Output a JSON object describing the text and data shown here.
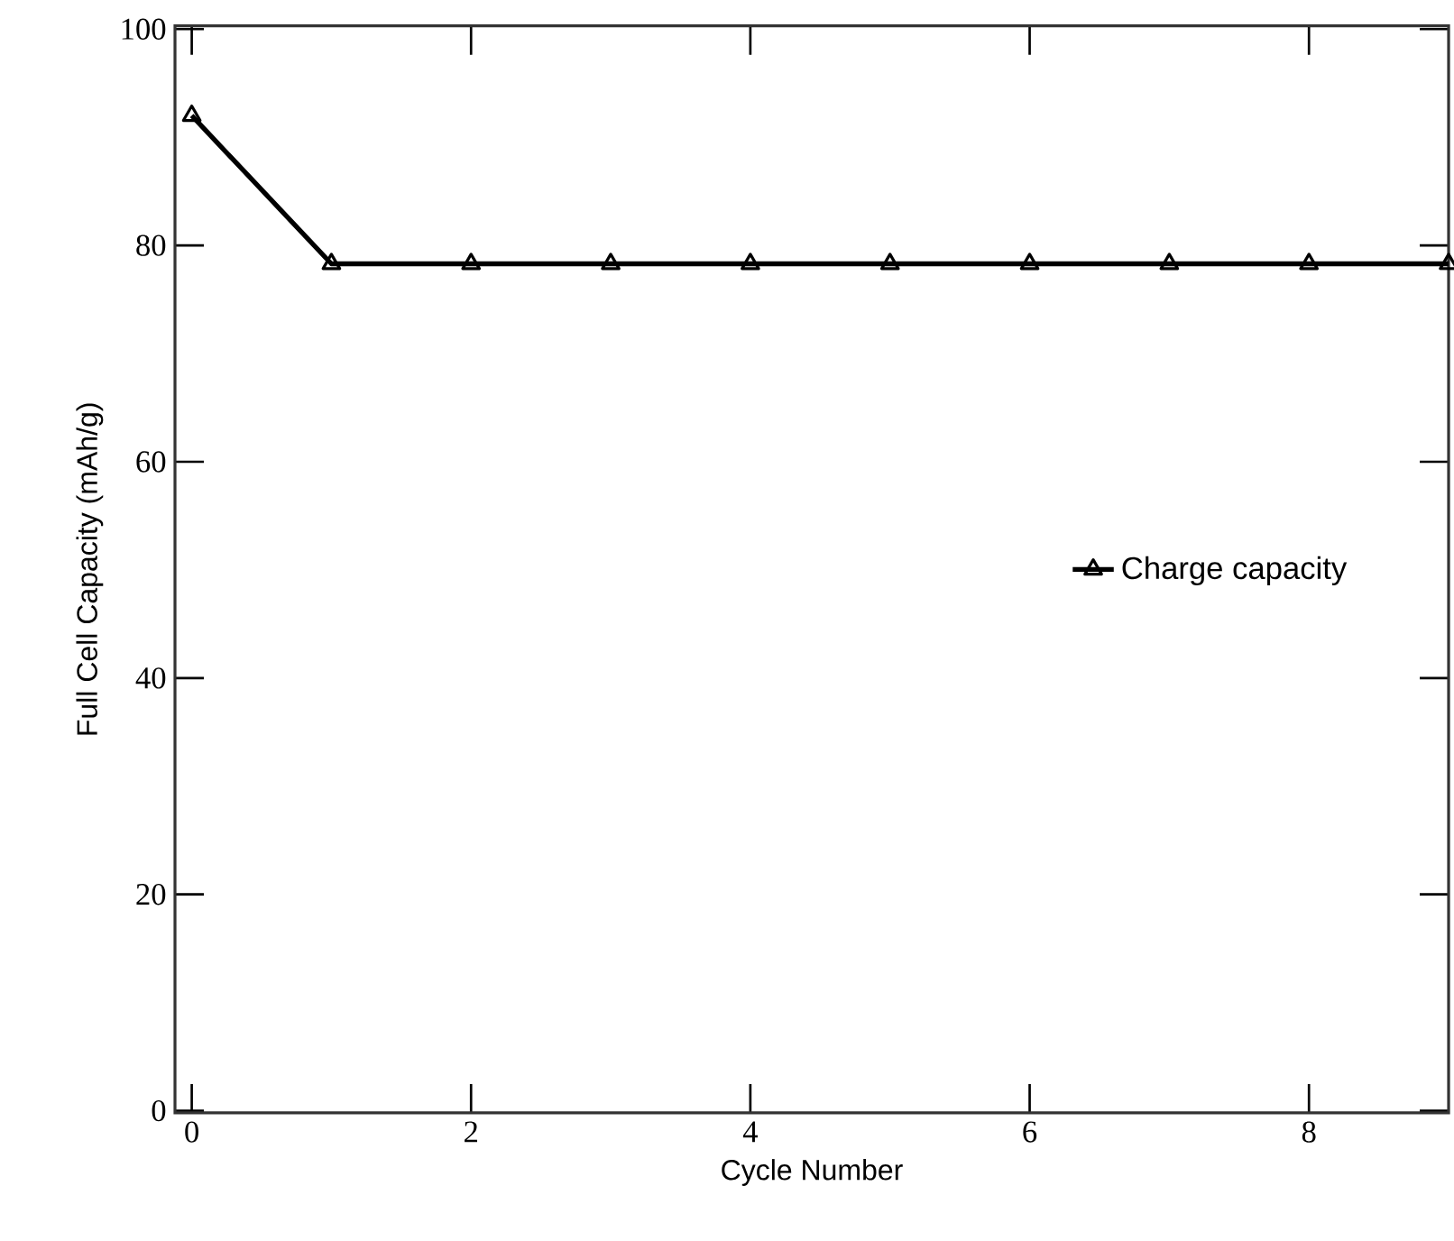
{
  "chart_data": {
    "type": "line",
    "xlabel": "Cycle Number",
    "ylabel": "Full Cell Capacity (mAh/g)",
    "x": [
      0,
      1,
      2,
      3,
      4,
      5,
      6,
      7,
      8,
      9
    ],
    "series": [
      {
        "name": "Charge capacity",
        "color": "#000000",
        "values": [
          92,
          78.3,
          78.3,
          78.3,
          78.3,
          78.3,
          78.3,
          78.3,
          78.3,
          78.3
        ]
      }
    ],
    "xlim": [
      -0.12,
      9
    ],
    "ylim": [
      -0.2,
      100.3
    ],
    "xticks": [
      0,
      2,
      4,
      6,
      8
    ],
    "yticks": [
      0,
      20,
      40,
      60,
      80,
      100
    ],
    "marker": "triangle",
    "line_style": "solid",
    "legend": "right",
    "grid": false
  }
}
